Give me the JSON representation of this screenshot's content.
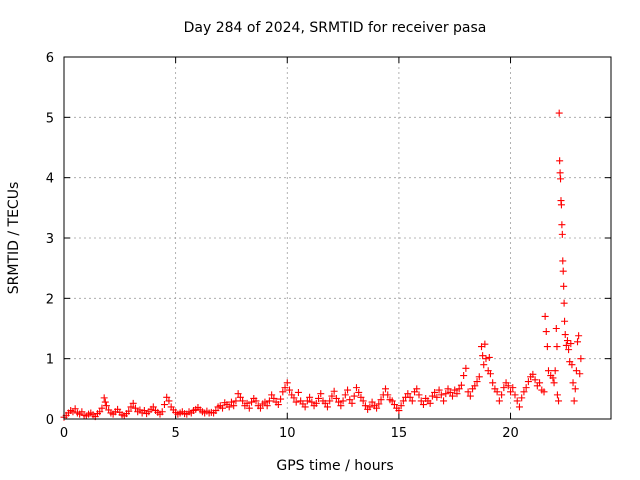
{
  "chart_data": {
    "type": "scatter",
    "title": "Day 284 of 2024, SRMTID for receiver pasa",
    "xlabel": "GPS time / hours",
    "ylabel": "SRMTID / TECUs",
    "xlim": [
      0,
      24.5
    ],
    "ylim": [
      0,
      6
    ],
    "x_ticks": [
      0,
      5,
      10,
      15,
      20
    ],
    "y_ticks": [
      0,
      1,
      2,
      3,
      4,
      5,
      6
    ],
    "grid": true,
    "marker": "+",
    "color": "#ff0000",
    "series": [
      {
        "name": "pasa",
        "points": [
          [
            0.0,
            0.03
          ],
          [
            0.1,
            0.06
          ],
          [
            0.2,
            0.1
          ],
          [
            0.3,
            0.14
          ],
          [
            0.4,
            0.12
          ],
          [
            0.5,
            0.17
          ],
          [
            0.6,
            0.1
          ],
          [
            0.7,
            0.08
          ],
          [
            0.8,
            0.12
          ],
          [
            0.9,
            0.06
          ],
          [
            1.0,
            0.05
          ],
          [
            1.1,
            0.08
          ],
          [
            1.2,
            0.1
          ],
          [
            1.3,
            0.07
          ],
          [
            1.4,
            0.04
          ],
          [
            1.5,
            0.09
          ],
          [
            1.6,
            0.12
          ],
          [
            1.7,
            0.18
          ],
          [
            1.8,
            0.35
          ],
          [
            1.85,
            0.28
          ],
          [
            1.9,
            0.22
          ],
          [
            2.0,
            0.15
          ],
          [
            2.1,
            0.1
          ],
          [
            2.2,
            0.08
          ],
          [
            2.3,
            0.12
          ],
          [
            2.4,
            0.16
          ],
          [
            2.5,
            0.11
          ],
          [
            2.6,
            0.07
          ],
          [
            2.7,
            0.05
          ],
          [
            2.8,
            0.09
          ],
          [
            2.9,
            0.13
          ],
          [
            3.0,
            0.2
          ],
          [
            3.1,
            0.26
          ],
          [
            3.2,
            0.18
          ],
          [
            3.3,
            0.12
          ],
          [
            3.4,
            0.15
          ],
          [
            3.5,
            0.1
          ],
          [
            3.6,
            0.14
          ],
          [
            3.7,
            0.09
          ],
          [
            3.8,
            0.12
          ],
          [
            3.9,
            0.16
          ],
          [
            4.0,
            0.2
          ],
          [
            4.1,
            0.14
          ],
          [
            4.2,
            0.11
          ],
          [
            4.3,
            0.08
          ],
          [
            4.4,
            0.12
          ],
          [
            4.5,
            0.24
          ],
          [
            4.6,
            0.36
          ],
          [
            4.7,
            0.3
          ],
          [
            4.8,
            0.2
          ],
          [
            4.9,
            0.15
          ],
          [
            5.0,
            0.11
          ],
          [
            5.1,
            0.08
          ],
          [
            5.2,
            0.1
          ],
          [
            5.3,
            0.12
          ],
          [
            5.4,
            0.09
          ],
          [
            5.5,
            0.08
          ],
          [
            5.6,
            0.12
          ],
          [
            5.7,
            0.1
          ],
          [
            5.8,
            0.14
          ],
          [
            5.9,
            0.16
          ],
          [
            6.0,
            0.19
          ],
          [
            6.1,
            0.15
          ],
          [
            6.2,
            0.12
          ],
          [
            6.3,
            0.1
          ],
          [
            6.4,
            0.13
          ],
          [
            6.5,
            0.1
          ],
          [
            6.6,
            0.11
          ],
          [
            6.7,
            0.1
          ],
          [
            6.8,
            0.14
          ],
          [
            6.9,
            0.2
          ],
          [
            7.0,
            0.22
          ],
          [
            7.1,
            0.18
          ],
          [
            7.2,
            0.27
          ],
          [
            7.3,
            0.24
          ],
          [
            7.4,
            0.2
          ],
          [
            7.5,
            0.28
          ],
          [
            7.6,
            0.22
          ],
          [
            7.7,
            0.3
          ],
          [
            7.8,
            0.42
          ],
          [
            7.9,
            0.36
          ],
          [
            8.0,
            0.3
          ],
          [
            8.1,
            0.22
          ],
          [
            8.2,
            0.26
          ],
          [
            8.3,
            0.18
          ],
          [
            8.4,
            0.28
          ],
          [
            8.5,
            0.34
          ],
          [
            8.6,
            0.3
          ],
          [
            8.7,
            0.22
          ],
          [
            8.8,
            0.18
          ],
          [
            8.9,
            0.25
          ],
          [
            9.0,
            0.28
          ],
          [
            9.1,
            0.22
          ],
          [
            9.2,
            0.3
          ],
          [
            9.3,
            0.4
          ],
          [
            9.4,
            0.34
          ],
          [
            9.5,
            0.28
          ],
          [
            9.6,
            0.24
          ],
          [
            9.7,
            0.33
          ],
          [
            9.8,
            0.45
          ],
          [
            9.9,
            0.52
          ],
          [
            10.0,
            0.6
          ],
          [
            10.1,
            0.48
          ],
          [
            10.2,
            0.4
          ],
          [
            10.3,
            0.35
          ],
          [
            10.4,
            0.28
          ],
          [
            10.5,
            0.44
          ],
          [
            10.6,
            0.3
          ],
          [
            10.7,
            0.25
          ],
          [
            10.8,
            0.2
          ],
          [
            10.9,
            0.3
          ],
          [
            11.0,
            0.36
          ],
          [
            11.1,
            0.28
          ],
          [
            11.2,
            0.22
          ],
          [
            11.3,
            0.26
          ],
          [
            11.4,
            0.34
          ],
          [
            11.5,
            0.42
          ],
          [
            11.6,
            0.3
          ],
          [
            11.7,
            0.26
          ],
          [
            11.8,
            0.2
          ],
          [
            11.9,
            0.3
          ],
          [
            12.0,
            0.38
          ],
          [
            12.1,
            0.46
          ],
          [
            12.2,
            0.34
          ],
          [
            12.3,
            0.28
          ],
          [
            12.4,
            0.22
          ],
          [
            12.5,
            0.3
          ],
          [
            12.6,
            0.4
          ],
          [
            12.7,
            0.48
          ],
          [
            12.8,
            0.32
          ],
          [
            12.9,
            0.26
          ],
          [
            13.0,
            0.38
          ],
          [
            13.1,
            0.52
          ],
          [
            13.2,
            0.44
          ],
          [
            13.3,
            0.36
          ],
          [
            13.4,
            0.3
          ],
          [
            13.5,
            0.22
          ],
          [
            13.6,
            0.16
          ],
          [
            13.7,
            0.2
          ],
          [
            13.8,
            0.28
          ],
          [
            13.9,
            0.22
          ],
          [
            14.0,
            0.18
          ],
          [
            14.1,
            0.25
          ],
          [
            14.2,
            0.32
          ],
          [
            14.3,
            0.4
          ],
          [
            14.4,
            0.5
          ],
          [
            14.5,
            0.4
          ],
          [
            14.6,
            0.32
          ],
          [
            14.7,
            0.3
          ],
          [
            14.8,
            0.24
          ],
          [
            14.9,
            0.18
          ],
          [
            15.0,
            0.14
          ],
          [
            15.1,
            0.22
          ],
          [
            15.2,
            0.3
          ],
          [
            15.3,
            0.36
          ],
          [
            15.4,
            0.42
          ],
          [
            15.5,
            0.36
          ],
          [
            15.6,
            0.3
          ],
          [
            15.7,
            0.45
          ],
          [
            15.8,
            0.5
          ],
          [
            15.9,
            0.4
          ],
          [
            16.0,
            0.3
          ],
          [
            16.1,
            0.24
          ],
          [
            16.2,
            0.34
          ],
          [
            16.3,
            0.3
          ],
          [
            16.4,
            0.26
          ],
          [
            16.5,
            0.38
          ],
          [
            16.6,
            0.44
          ],
          [
            16.7,
            0.36
          ],
          [
            16.8,
            0.48
          ],
          [
            16.9,
            0.4
          ],
          [
            17.0,
            0.3
          ],
          [
            17.1,
            0.42
          ],
          [
            17.2,
            0.5
          ],
          [
            17.3,
            0.44
          ],
          [
            17.4,
            0.38
          ],
          [
            17.5,
            0.48
          ],
          [
            17.6,
            0.42
          ],
          [
            17.7,
            0.5
          ],
          [
            17.8,
            0.56
          ],
          [
            17.9,
            0.72
          ],
          [
            18.0,
            0.84
          ],
          [
            18.1,
            0.45
          ],
          [
            18.2,
            0.38
          ],
          [
            18.3,
            0.5
          ],
          [
            18.4,
            0.55
          ],
          [
            18.5,
            0.62
          ],
          [
            18.6,
            0.7
          ],
          [
            18.7,
            1.2
          ],
          [
            18.75,
            1.05
          ],
          [
            18.8,
            0.9
          ],
          [
            18.85,
            1.24
          ],
          [
            18.9,
            1.0
          ],
          [
            19.0,
            0.8
          ],
          [
            19.05,
            1.02
          ],
          [
            19.1,
            0.75
          ],
          [
            19.2,
            0.6
          ],
          [
            19.3,
            0.5
          ],
          [
            19.4,
            0.45
          ],
          [
            19.5,
            0.3
          ],
          [
            19.6,
            0.4
          ],
          [
            19.7,
            0.52
          ],
          [
            19.8,
            0.6
          ],
          [
            19.9,
            0.55
          ],
          [
            20.0,
            0.45
          ],
          [
            20.1,
            0.52
          ],
          [
            20.2,
            0.4
          ],
          [
            20.3,
            0.3
          ],
          [
            20.4,
            0.2
          ],
          [
            20.5,
            0.35
          ],
          [
            20.6,
            0.45
          ],
          [
            20.7,
            0.52
          ],
          [
            20.8,
            0.62
          ],
          [
            20.9,
            0.7
          ],
          [
            21.0,
            0.74
          ],
          [
            21.1,
            0.65
          ],
          [
            21.2,
            0.55
          ],
          [
            21.3,
            0.6
          ],
          [
            21.4,
            0.48
          ],
          [
            21.5,
            0.45
          ],
          [
            21.55,
            1.7
          ],
          [
            21.6,
            1.45
          ],
          [
            21.65,
            1.2
          ],
          [
            21.7,
            0.8
          ],
          [
            21.8,
            0.72
          ],
          [
            21.9,
            0.68
          ],
          [
            21.95,
            0.6
          ],
          [
            22.0,
            0.8
          ],
          [
            22.05,
            1.5
          ],
          [
            22.08,
            1.2
          ],
          [
            22.1,
            0.4
          ],
          [
            22.15,
            0.3
          ],
          [
            22.18,
            5.07
          ],
          [
            22.2,
            4.28
          ],
          [
            22.22,
            4.08
          ],
          [
            22.24,
            3.98
          ],
          [
            22.26,
            3.62
          ],
          [
            22.28,
            3.55
          ],
          [
            22.3,
            3.22
          ],
          [
            22.32,
            3.06
          ],
          [
            22.34,
            2.62
          ],
          [
            22.36,
            2.45
          ],
          [
            22.38,
            2.2
          ],
          [
            22.4,
            1.92
          ],
          [
            22.42,
            1.62
          ],
          [
            22.45,
            1.4
          ],
          [
            22.5,
            1.22
          ],
          [
            22.55,
            1.3
          ],
          [
            22.6,
            1.15
          ],
          [
            22.65,
            0.95
          ],
          [
            22.7,
            1.25
          ],
          [
            22.75,
            0.9
          ],
          [
            22.8,
            0.6
          ],
          [
            22.85,
            0.3
          ],
          [
            22.9,
            0.5
          ],
          [
            22.95,
            0.8
          ],
          [
            23.0,
            1.28
          ],
          [
            23.05,
            1.38
          ],
          [
            23.1,
            0.75
          ],
          [
            23.15,
            1.0
          ]
        ]
      }
    ]
  }
}
